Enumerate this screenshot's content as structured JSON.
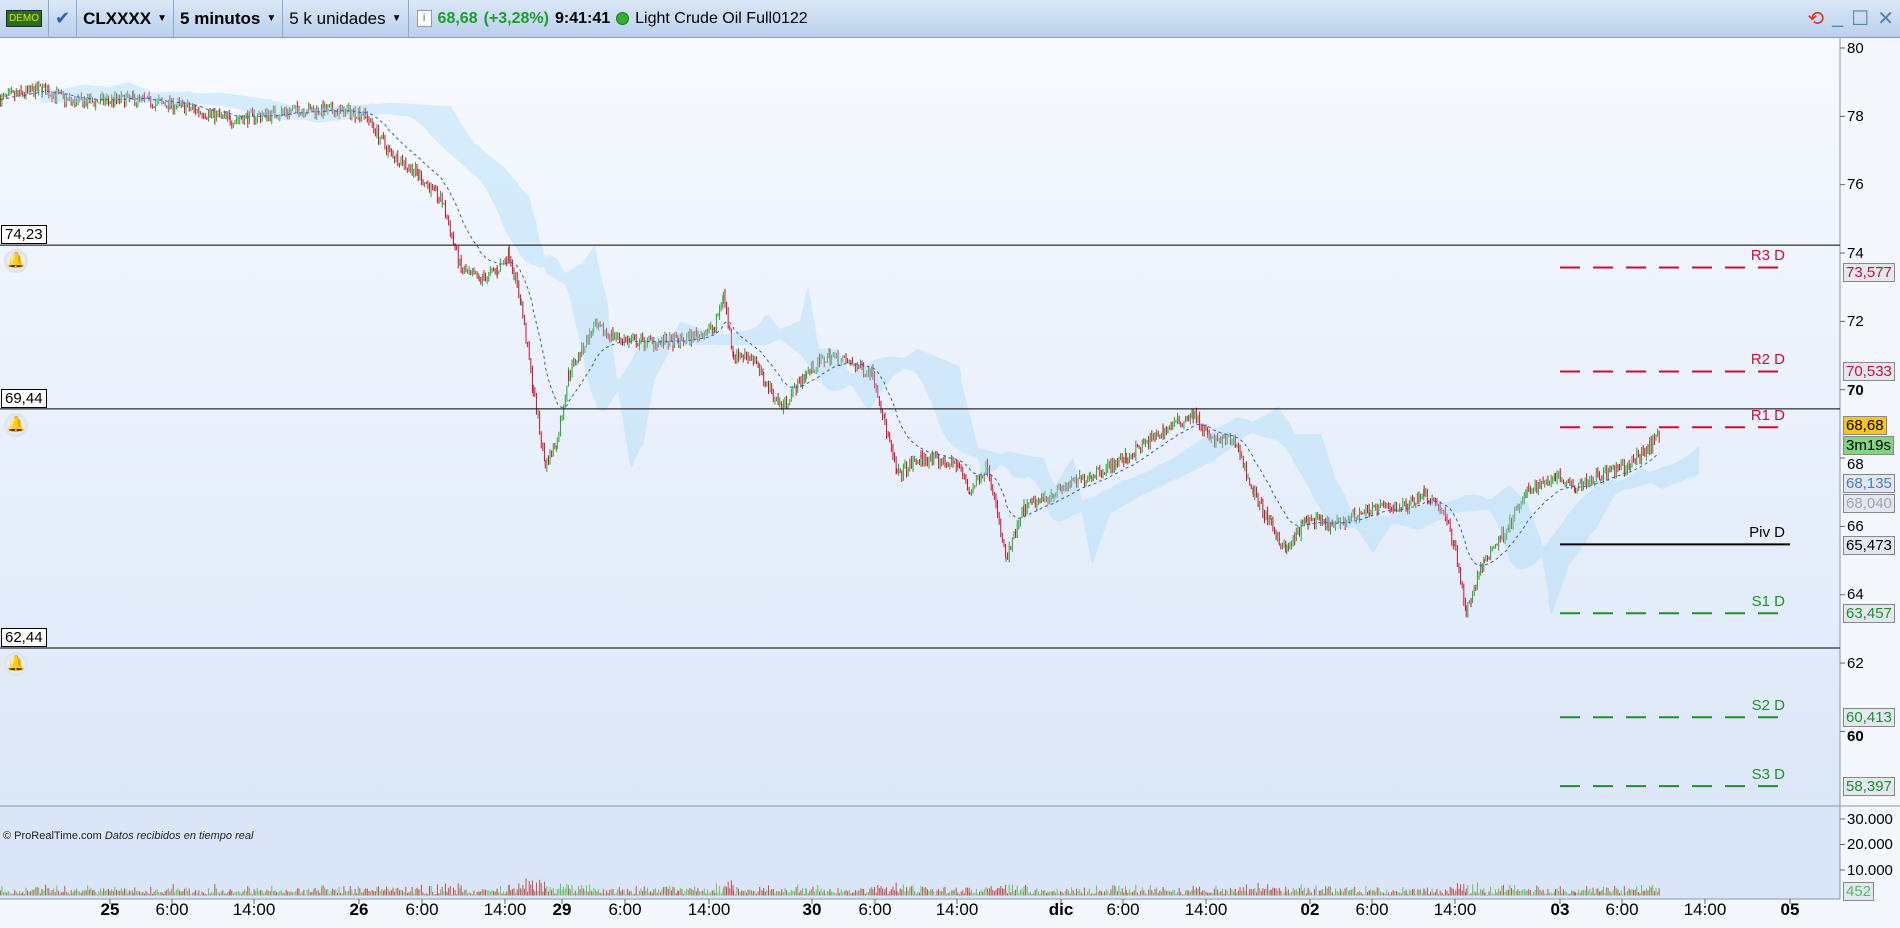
{
  "toolbar": {
    "demo_badge": "DEMO",
    "symbol": "CLXXXX",
    "timeframe": "5 minutos",
    "units": "5 k unidades",
    "last_price": "68,68",
    "change": "(+3,28%)",
    "time": "9:41:41",
    "instrument": "Light Crude Oil Full0122",
    "icons": [
      "demo-icon",
      "link-check-icon",
      "info-icon",
      "status-dot-icon",
      "refresh-icon",
      "minimize-icon",
      "maximize-icon",
      "close-icon"
    ]
  },
  "colors": {
    "up": "#2ca02c",
    "down": "#c8102e",
    "resistance": "#c8102e",
    "support": "#1f8f2a",
    "pivot": "#000000",
    "last_price_bg": "#f5c518",
    "countdown_bg": "#7fd67f"
  },
  "alerts": [
    {
      "label": "74,23",
      "price": 74.23
    },
    {
      "label": "69,44",
      "price": 69.44
    },
    {
      "label": "62,44",
      "price": 62.44
    }
  ],
  "pivots": [
    {
      "label": "R3 D",
      "value": "73,577",
      "price": 73.577,
      "type": "resistance"
    },
    {
      "label": "R2 D",
      "value": "70,533",
      "price": 70.533,
      "type": "resistance"
    },
    {
      "label": "R1 D",
      "value": "",
      "price": 68.9,
      "type": "resistance"
    },
    {
      "label": "Piv D",
      "value": "65,473",
      "price": 65.473,
      "type": "pivot"
    },
    {
      "label": "S1 D",
      "value": "63,457",
      "price": 63.457,
      "type": "support"
    },
    {
      "label": "S2 D",
      "value": "60,413",
      "price": 60.413,
      "type": "support"
    },
    {
      "label": "S3 D",
      "value": "58,397",
      "price": 58.397,
      "type": "support"
    }
  ],
  "price_axis": {
    "ticks": [
      "80",
      "78",
      "76",
      "74",
      "72",
      "70",
      "68",
      "66",
      "64",
      "62",
      "60"
    ],
    "last_price": "68,68",
    "countdown": "3m19s",
    "ma_value": "68,135",
    "cloud_value": "68,040"
  },
  "volume_axis": {
    "ticks": [
      "30.000",
      "20.000",
      "10.000"
    ],
    "last_volume": "452"
  },
  "time_axis": [
    {
      "t": "25",
      "day": true
    },
    {
      "t": "6:00"
    },
    {
      "t": "14:00"
    },
    {
      "t": "26",
      "day": true
    },
    {
      "t": "6:00"
    },
    {
      "t": "14:00"
    },
    {
      "t": "29",
      "day": true
    },
    {
      "t": "6:00"
    },
    {
      "t": "14:00"
    },
    {
      "t": "30",
      "day": true
    },
    {
      "t": "6:00"
    },
    {
      "t": "14:00"
    },
    {
      "t": "dic",
      "day": true
    },
    {
      "t": "6:00"
    },
    {
      "t": "14:00"
    },
    {
      "t": "02",
      "day": true
    },
    {
      "t": "6:00"
    },
    {
      "t": "14:00"
    },
    {
      "t": "03",
      "day": true
    },
    {
      "t": "6:00"
    },
    {
      "t": "14:00"
    },
    {
      "t": "05",
      "day": true
    }
  ],
  "watermark": {
    "brand": "© ProRealTime.com",
    "status": "Datos recibidos en tiempo real"
  },
  "chart_data": {
    "type": "candlestick",
    "ylim": [
      57,
      80.3
    ],
    "price_path": [
      [
        "24 13:20",
        78.5
      ],
      [
        "24 17:25",
        78.8
      ],
      [
        "24 20:25",
        78.4
      ],
      [
        "25 02:15",
        78.5
      ],
      [
        "25 06:55",
        78.3
      ],
      [
        "25 11:40",
        77.9
      ],
      [
        "25 18:40",
        78.2
      ],
      [
        "26 00:30",
        78.1
      ],
      [
        "26 02:50",
        77.0
      ],
      [
        "26 05:45",
        76.3
      ],
      [
        "26 08:05",
        75.5
      ],
      [
        "26 09:55",
        73.5
      ],
      [
        "26 11:40",
        73.2
      ],
      [
        "26 13:25",
        73.5
      ],
      [
        "26 14:35",
        74.0
      ],
      [
        "26 15:45",
        72.5
      ],
      [
        "26 16:55",
        70.0
      ],
      [
        "26 18:05",
        67.8
      ],
      [
        "26 19:15",
        68.5
      ],
      [
        "29 00:40",
        70.5
      ],
      [
        "29 03:05",
        71.8
      ],
      [
        "29 06:35",
        71.4
      ],
      [
        "29 11:20",
        71.4
      ],
      [
        "29 14:50",
        71.8
      ],
      [
        "29 15:40",
        72.8
      ],
      [
        "29 16:40",
        71.0
      ],
      [
        "29 18:25",
        71.0
      ],
      [
        "29 19:35",
        70.3
      ],
      [
        "29 21:20",
        69.5
      ],
      [
        "29 23:45",
        70.5
      ],
      [
        "30 01:45",
        71.0
      ],
      [
        "30 05:55",
        70.5
      ],
      [
        "30 07:05",
        69.0
      ],
      [
        "30 08:15",
        67.5
      ],
      [
        "30 10:35",
        68.0
      ],
      [
        "30 14:10",
        67.8
      ],
      [
        "30 15:20",
        67.0
      ],
      [
        "30 17:05",
        67.8
      ],
      [
        "30 18:50",
        65.0
      ],
      [
        "30 20:35",
        66.5
      ],
      [
        "30 23:30",
        67.0
      ],
      [
        "01 02:50",
        67.5
      ],
      [
        "01 06:20",
        68.0
      ],
      [
        "01 09:55",
        68.8
      ],
      [
        "01 12:50",
        69.3
      ],
      [
        "01 14:35",
        68.5
      ],
      [
        "01 16:55",
        68.5
      ],
      [
        "01 18:40",
        67.0
      ],
      [
        "01 20:25",
        66.0
      ],
      [
        "01 21:55",
        65.3
      ],
      [
        "01 23:50",
        66.2
      ],
      [
        "02 02:10",
        66.0
      ],
      [
        "02 05:45",
        66.5
      ],
      [
        "02 09:20",
        66.6
      ],
      [
        "02 11:05",
        67.0
      ],
      [
        "02 12:50",
        66.5
      ],
      [
        "02 14:00",
        65.5
      ],
      [
        "02 15:10",
        63.5
      ],
      [
        "02 16:55",
        65.0
      ],
      [
        "02 19:15",
        66.0
      ],
      [
        "02 21:05",
        67.0
      ],
      [
        "02 23:50",
        67.5
      ],
      [
        "03 01:30",
        67.2
      ],
      [
        "03 03:55",
        67.5
      ],
      [
        "03 06:50",
        67.8
      ],
      [
        "03 09:41",
        68.68
      ]
    ]
  }
}
